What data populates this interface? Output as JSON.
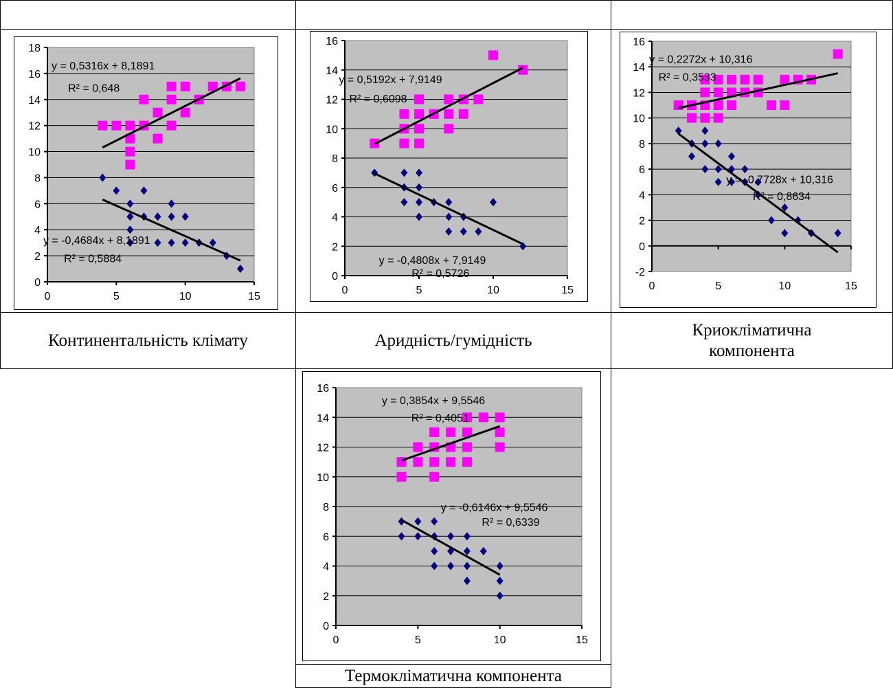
{
  "captions": [
    "Континентальність клімату",
    "Аридність/гумідність",
    "Криокліматична компонента",
    "Термокліматична компонента"
  ],
  "colors": {
    "upper": "#ff00ff",
    "lower": "#000080",
    "plot_bg": "#c0c0c0",
    "trend": "#000000"
  },
  "chart_data": [
    {
      "type": "scatter",
      "xlim": [
        0,
        15
      ],
      "ylim": [
        0,
        18
      ],
      "xticks": [
        0,
        5,
        10,
        15
      ],
      "yticks": [
        0,
        2,
        4,
        6,
        8,
        10,
        12,
        14,
        16,
        18
      ],
      "grid": true,
      "series": [
        {
          "marker": "square",
          "color": "#ff00ff",
          "x": [
            4,
            5,
            6,
            6,
            6,
            6,
            7,
            7,
            8,
            8,
            9,
            9,
            9,
            10,
            10,
            11,
            12,
            13,
            14
          ],
          "y": [
            12,
            12,
            12,
            11,
            10,
            9,
            14,
            12,
            13,
            11,
            15,
            14,
            12,
            15,
            13,
            14,
            15,
            15,
            15
          ],
          "trendline": {
            "slope": 0.5316,
            "intercept": 8.1891
          }
        },
        {
          "marker": "diamond",
          "color": "#000080",
          "x": [
            4,
            5,
            6,
            6,
            6,
            6,
            7,
            7,
            8,
            8,
            9,
            9,
            9,
            10,
            10,
            11,
            12,
            13,
            14
          ],
          "y": [
            8,
            7,
            6,
            5,
            4,
            3,
            7,
            5,
            5,
            3,
            6,
            5,
            3,
            5,
            3,
            3,
            3,
            2,
            1
          ],
          "trendline": {
            "slope": -0.4684,
            "intercept": 8.1891
          }
        }
      ],
      "annotations": [
        {
          "text": "y = 0,5316x + 8,1891",
          "x": 0.3,
          "y": 16.3
        },
        {
          "text": "R² = 0,648",
          "x": 1.5,
          "y": 14.6
        },
        {
          "text": "y = -0,4684x + 8,1891",
          "x": -0.3,
          "y": 2.9
        },
        {
          "text": "R² = 0,5884",
          "x": 1.2,
          "y": 1.5
        }
      ]
    },
    {
      "type": "scatter",
      "xlim": [
        0,
        15
      ],
      "ylim": [
        0,
        16
      ],
      "xticks": [
        0,
        5,
        10,
        15
      ],
      "yticks": [
        0,
        2,
        4,
        6,
        8,
        10,
        12,
        14,
        16
      ],
      "grid": true,
      "series": [
        {
          "marker": "square",
          "color": "#ff00ff",
          "x": [
            2,
            4,
            4,
            4,
            5,
            5,
            5,
            5,
            6,
            7,
            7,
            7,
            8,
            8,
            9,
            10,
            12
          ],
          "y": [
            9,
            11,
            10,
            9,
            12,
            11,
            10,
            9,
            11,
            12,
            11,
            10,
            12,
            11,
            12,
            15,
            14
          ],
          "trendline": {
            "slope": 0.5192,
            "intercept": 7.9149
          }
        },
        {
          "marker": "diamond",
          "color": "#000080",
          "x": [
            2,
            4,
            4,
            4,
            5,
            5,
            5,
            5,
            6,
            7,
            7,
            7,
            8,
            8,
            9,
            10,
            12
          ],
          "y": [
            7,
            7,
            6,
            5,
            7,
            6,
            5,
            4,
            5,
            5,
            4,
            3,
            4,
            3,
            3,
            5,
            2
          ],
          "trendline": {
            "slope": -0.4808,
            "intercept": 7.9149
          }
        }
      ],
      "annotations": [
        {
          "text": "y = 0,5192x + 7,9149",
          "x": -0.4,
          "y": 13.1
        },
        {
          "text": "R² = 0,6098",
          "x": 0.3,
          "y": 11.8
        },
        {
          "text": "y = -0,4808x + 7,9149",
          "x": 2.3,
          "y": 0.8
        },
        {
          "text": "R² = 0,5726",
          "x": 4.5,
          "y": -0.1
        }
      ]
    },
    {
      "type": "scatter",
      "xlim": [
        0,
        15
      ],
      "ylim": [
        -2,
        16
      ],
      "xticks": [
        0,
        5,
        10,
        15
      ],
      "yticks": [
        -2,
        0,
        2,
        4,
        6,
        8,
        10,
        12,
        14,
        16
      ],
      "grid": true,
      "series": [
        {
          "marker": "square",
          "color": "#ff00ff",
          "x": [
            2,
            3,
            3,
            4,
            4,
            4,
            4,
            5,
            5,
            5,
            5,
            6,
            6,
            6,
            7,
            7,
            8,
            8,
            9,
            10,
            10,
            11,
            12,
            14
          ],
          "y": [
            11,
            11,
            10,
            13,
            12,
            11,
            10,
            13,
            12,
            11,
            10,
            13,
            12,
            11,
            13,
            12,
            13,
            12,
            11,
            13,
            11,
            13,
            13,
            15
          ],
          "trendline": {
            "slope": 0.2272,
            "intercept": 10.316
          }
        },
        {
          "marker": "diamond",
          "color": "#000080",
          "x": [
            2,
            3,
            3,
            4,
            4,
            4,
            5,
            5,
            5,
            6,
            6,
            6,
            7,
            7,
            8,
            8,
            9,
            10,
            10,
            11,
            12,
            14
          ],
          "y": [
            9,
            8,
            7,
            9,
            8,
            6,
            8,
            6,
            5,
            7,
            6,
            5,
            6,
            5,
            5,
            4,
            2,
            3,
            1,
            2,
            1,
            1
          ],
          "trendline": {
            "slope": -0.7728,
            "intercept": 10.316
          }
        }
      ],
      "annotations": [
        {
          "text": "y = 0,2272x + 10,316",
          "x": -0.2,
          "y": 14.3
        },
        {
          "text": "R² = 0,3533",
          "x": 0.5,
          "y": 12.9
        },
        {
          "text": "y = -0,7728x + 10,316",
          "x": 5.6,
          "y": 4.9
        },
        {
          "text": "R² = 0,8634",
          "x": 7.6,
          "y": 3.6
        }
      ]
    },
    {
      "type": "scatter",
      "xlim": [
        0,
        15
      ],
      "ylim": [
        0,
        16
      ],
      "xticks": [
        0,
        5,
        10,
        15
      ],
      "yticks": [
        0,
        2,
        4,
        6,
        8,
        10,
        12,
        14,
        16
      ],
      "grid": true,
      "series": [
        {
          "marker": "square",
          "color": "#ff00ff",
          "x": [
            4,
            4,
            5,
            5,
            6,
            6,
            6,
            6,
            6,
            7,
            7,
            7,
            8,
            8,
            8,
            8,
            9,
            10,
            10,
            10
          ],
          "y": [
            11,
            10,
            12,
            11,
            13,
            12,
            11,
            10,
            13,
            13,
            12,
            11,
            14,
            13,
            12,
            11,
            14,
            14,
            13,
            12
          ],
          "trendline": {
            "slope": 0.3854,
            "intercept": 9.5546
          }
        },
        {
          "marker": "diamond",
          "color": "#000080",
          "x": [
            4,
            4,
            5,
            5,
            6,
            6,
            6,
            6,
            7,
            7,
            7,
            8,
            8,
            8,
            8,
            9,
            10,
            10,
            10
          ],
          "y": [
            7,
            6,
            7,
            6,
            7,
            6,
            5,
            4,
            6,
            5,
            4,
            6,
            5,
            4,
            3,
            5,
            4,
            3,
            2
          ],
          "trendline": {
            "slope": -0.6146,
            "intercept": 9.5546
          }
        }
      ],
      "annotations": [
        {
          "text": "y = 0,3854x + 9,5546",
          "x": 2.8,
          "y": 14.9
        },
        {
          "text": "R² = 0,4051",
          "x": 4.6,
          "y": 13.7
        },
        {
          "text": "y = -0,6146x + 9,5546",
          "x": 6.4,
          "y": 7.7
        },
        {
          "text": "R² = 0,6339",
          "x": 8.9,
          "y": 6.7
        }
      ]
    }
  ]
}
